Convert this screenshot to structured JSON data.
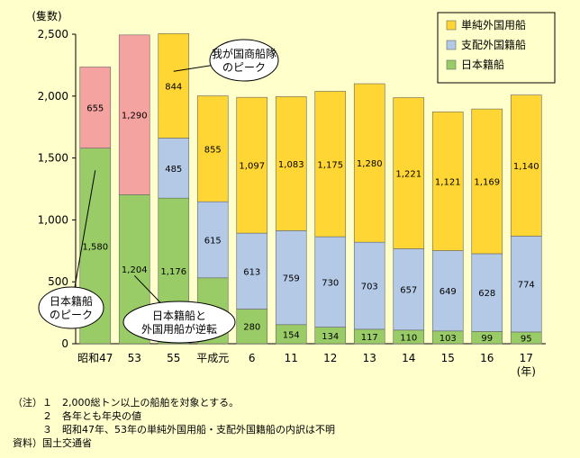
{
  "chart_data": {
    "type": "bar",
    "stacked": true,
    "unit_label": "(隻数)",
    "x_unit": "(年)",
    "categories": [
      "昭和47",
      "53",
      "55",
      "平成元",
      "6",
      "11",
      "12",
      "13",
      "14",
      "15",
      "16",
      "17"
    ],
    "ylim": [
      0,
      2500
    ],
    "y_ticks": [
      "0",
      "500",
      "1,000",
      "1,500",
      "2,000",
      "2,500"
    ],
    "y_tick_values": [
      0,
      500,
      1000,
      1500,
      2000,
      2500
    ],
    "grid": false,
    "legend_position": "top-right",
    "series": [
      {
        "name": "日本籍船",
        "color": "#99cc66",
        "values": [
          1580,
          1204,
          1176,
          532,
          280,
          154,
          134,
          117,
          110,
          103,
          99,
          95
        ],
        "labels": [
          "1,580",
          "1,204",
          "1,176",
          "532",
          "280",
          "154",
          "134",
          "117",
          "110",
          "103",
          "99",
          "95"
        ]
      },
      {
        "name": "支配外国籍船",
        "color": "#b3c9e6",
        "values": [
          0,
          0,
          485,
          615,
          613,
          759,
          730,
          703,
          657,
          649,
          628,
          774
        ],
        "labels": [
          "",
          "",
          "485",
          "615",
          "613",
          "759",
          "730",
          "703",
          "657",
          "649",
          "628",
          "774"
        ]
      },
      {
        "name": "単純外国用船",
        "color": "#ffd633",
        "values": [
          0,
          0,
          844,
          855,
          1097,
          1083,
          1175,
          1280,
          1221,
          1121,
          1169,
          1140
        ],
        "labels": [
          "",
          "",
          "844",
          "855",
          "1,097",
          "1,083",
          "1,175",
          "1,280",
          "1,221",
          "1,121",
          "1,169",
          "1,140"
        ]
      },
      {
        "name": "",
        "color": "#f4a3a0",
        "values": [
          655,
          1290,
          0,
          0,
          0,
          0,
          0,
          0,
          0,
          0,
          0,
          0
        ],
        "labels": [
          "655",
          "1,290",
          "",
          "",
          "",
          "",
          "",
          "",
          "",
          "",
          "",
          ""
        ]
      }
    ],
    "legend": [
      {
        "name": "単純外国用船",
        "color": "#ffd633"
      },
      {
        "name": "支配外国籍船",
        "color": "#b3c9e6"
      },
      {
        "name": "日本籍船",
        "color": "#99cc66"
      }
    ],
    "annotations": [
      {
        "text": [
          "我が国商船隊",
          "のピーク"
        ],
        "points_to": "55"
      },
      {
        "text": [
          "日本籍船",
          "のピーク"
        ],
        "points_to": "昭和47"
      },
      {
        "text": [
          "日本籍船と",
          "外国用船が逆転"
        ],
        "points_to": "53"
      }
    ]
  },
  "notes": {
    "line1": "（注）１　2,000総トン以上の船舶を対象とする。",
    "line2": "　　　２　各年とも年央の値",
    "line3": "　　　３　昭和47年、53年の単純外国用船・支配外国籍船の内訳は不明",
    "line4": "資料）国土交通省"
  }
}
